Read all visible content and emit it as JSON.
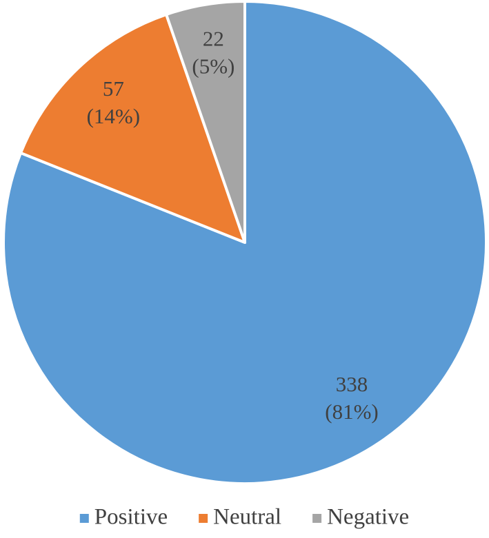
{
  "chart_data": {
    "type": "pie",
    "categories": [
      "Positive",
      "Neutral",
      "Negative"
    ],
    "values": [
      338,
      57,
      22
    ],
    "value_labels": [
      [
        "338",
        "(81%)"
      ],
      [
        "57",
        "(14%)"
      ],
      [
        "22",
        "(5%)"
      ]
    ],
    "colors": [
      "#5b9bd5",
      "#ed7d31",
      "#a5a5a5"
    ],
    "legend": "bottom"
  }
}
